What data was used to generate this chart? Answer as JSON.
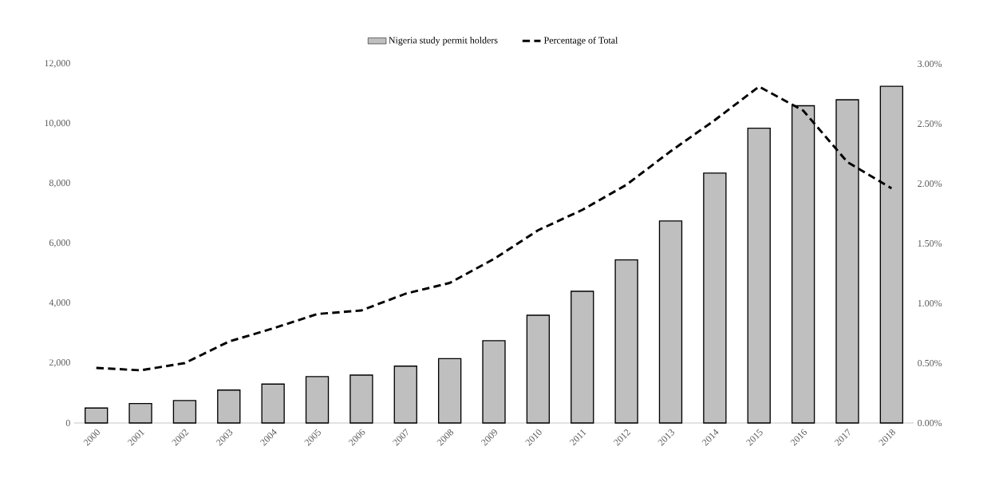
{
  "chart_data": {
    "type": "bar",
    "categories": [
      "2000",
      "2001",
      "2002",
      "2003",
      "2004",
      "2005",
      "2006",
      "2007",
      "2008",
      "2009",
      "2010",
      "2011",
      "2012",
      "2013",
      "2014",
      "2015",
      "2016",
      "2017",
      "2018"
    ],
    "series": [
      {
        "name": "Nigeria study permit holders",
        "color": "#bfbfbf",
        "values": [
          500,
          650,
          750,
          1100,
          1300,
          1550,
          1600,
          1900,
          2150,
          2750,
          3600,
          4400,
          5450,
          6750,
          8350,
          9850,
          10600,
          10800,
          11250
        ]
      },
      {
        "name": "Percentage of Total",
        "type": "line",
        "axis": "y2",
        "color": "#000000",
        "line_style": "dashed",
        "values": [
          0.46,
          0.44,
          0.5,
          0.68,
          0.79,
          0.91,
          0.94,
          1.08,
          1.17,
          1.37,
          1.61,
          1.78,
          1.99,
          2.27,
          2.53,
          2.81,
          2.61,
          2.18,
          1.96
        ]
      }
    ],
    "ylim": [
      0,
      12000
    ],
    "yticks": [
      0,
      {
        "value": 2000,
        "label": "2,000"
      },
      {
        "value": 4000,
        "label": "4,000"
      },
      {
        "value": 6000,
        "label": "6,000"
      },
      {
        "value": 8000,
        "label": "8,000"
      },
      {
        "value": 10000,
        "label": "10,000"
      },
      {
        "value": 12000,
        "label": "12,000"
      }
    ],
    "y2lim": [
      0,
      3
    ],
    "y2ticks": [
      {
        "value": 0,
        "label": "0.00%"
      },
      {
        "value": 0.5,
        "label": "0.50%"
      },
      {
        "value": 1,
        "label": "1.00%"
      },
      {
        "value": 1.5,
        "label": "1.50%"
      },
      {
        "value": 2,
        "label": "2.00%"
      },
      {
        "value": 2.5,
        "label": "2.50%"
      },
      {
        "value": 3,
        "label": "3.00%"
      }
    ],
    "legend": "top",
    "grid": false,
    "marker": "none"
  }
}
